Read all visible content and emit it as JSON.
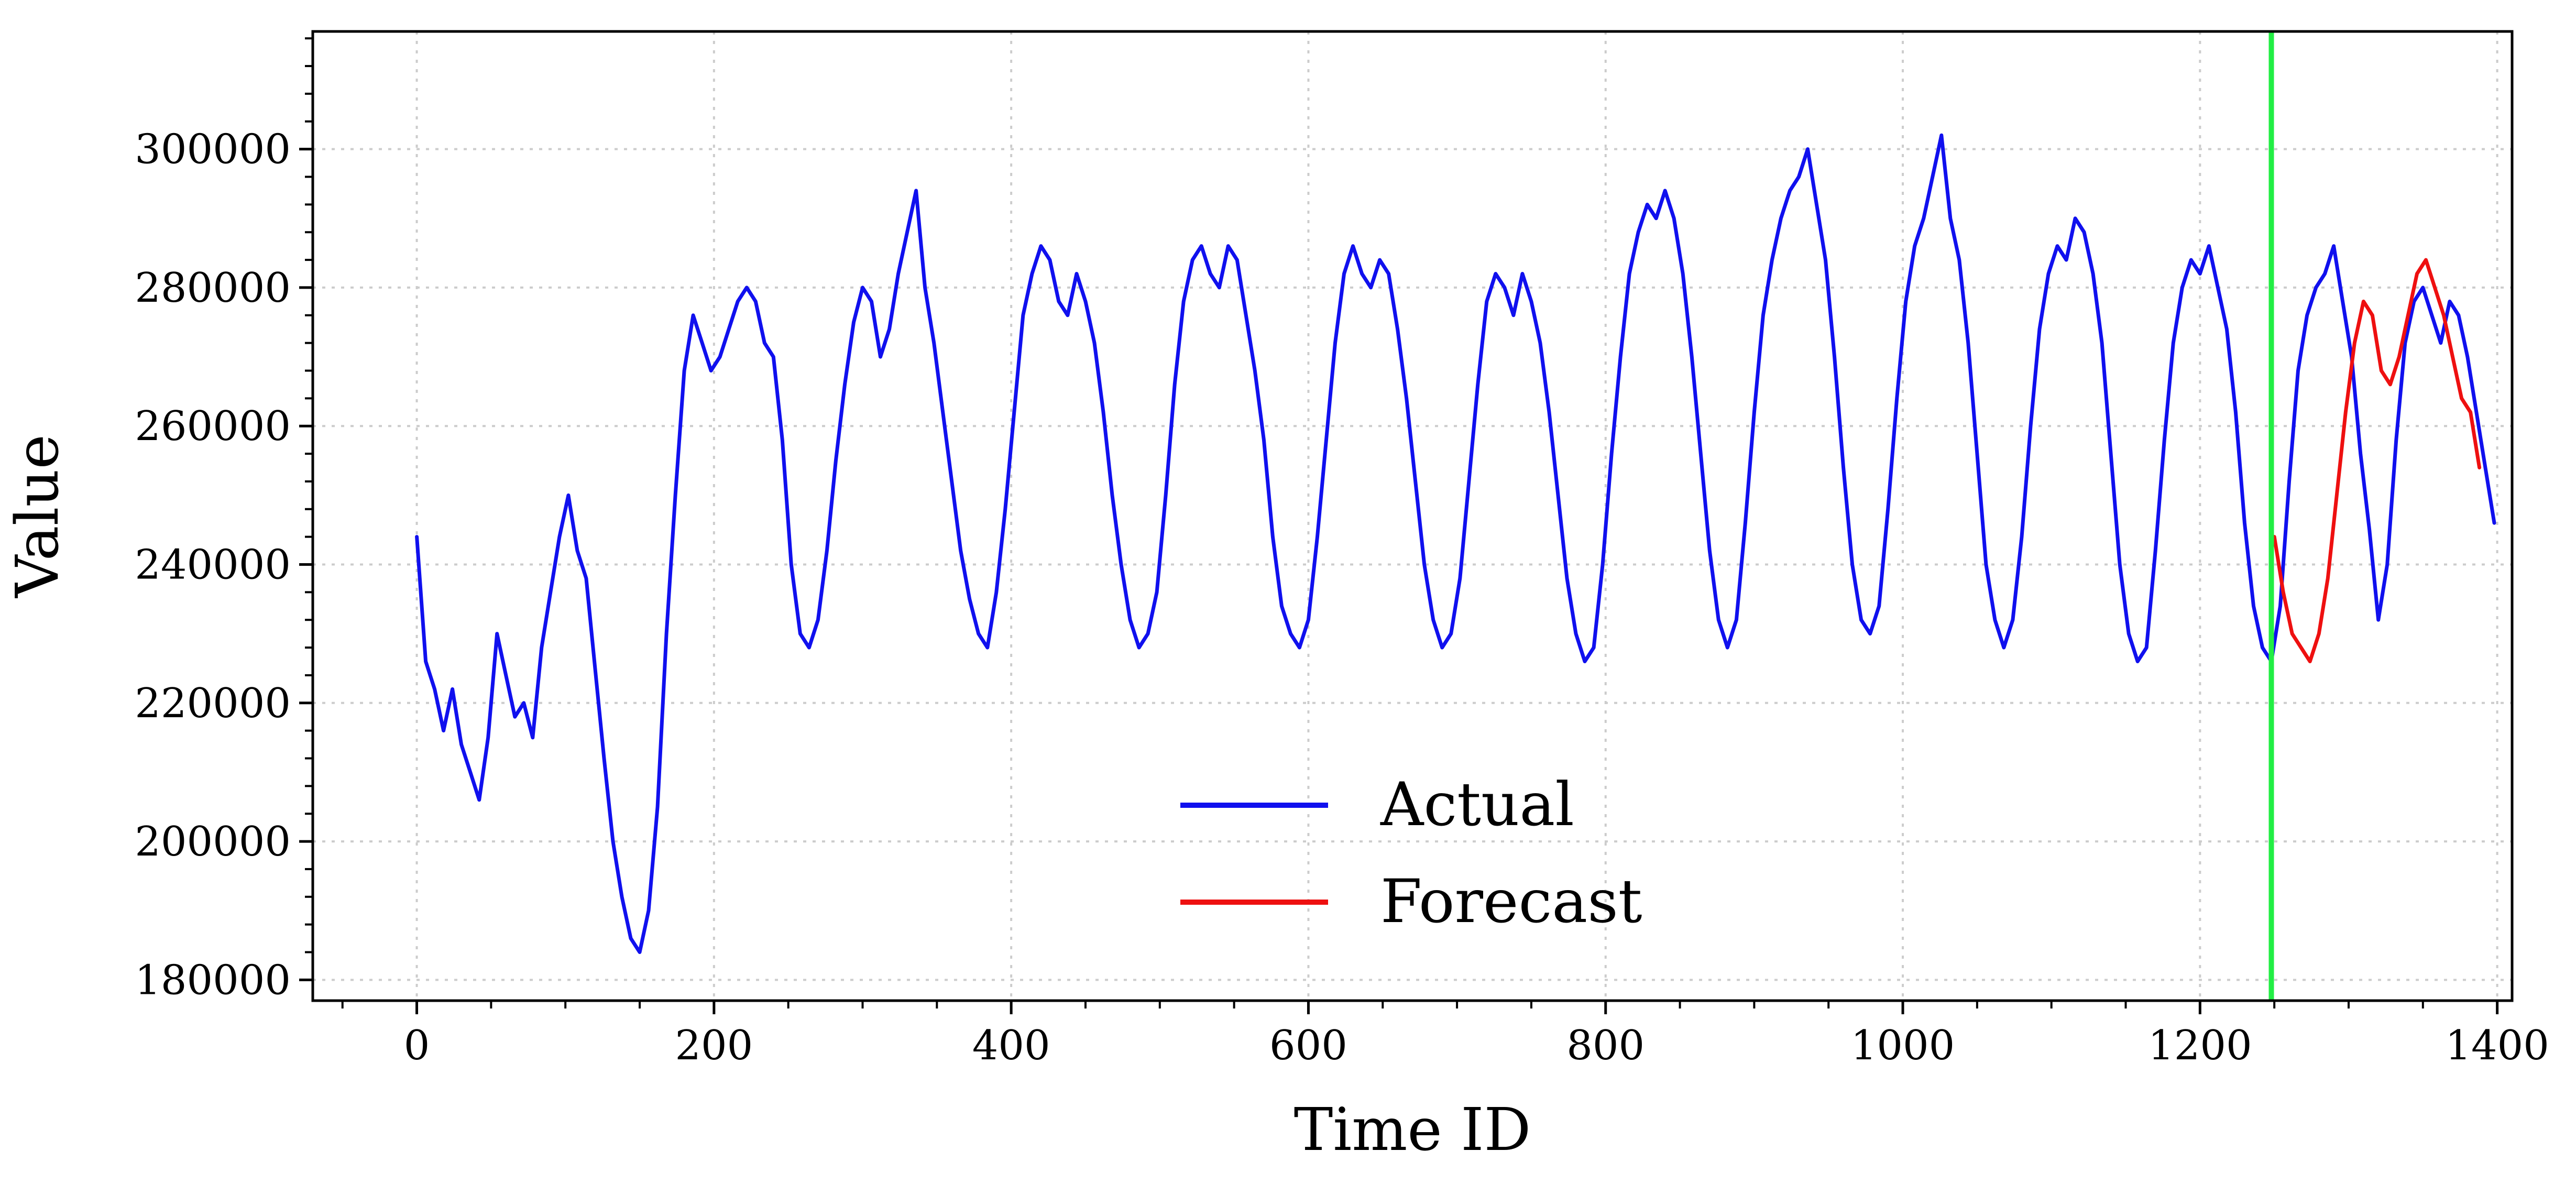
{
  "chart_data": {
    "type": "line",
    "title": "",
    "xlabel": "Time ID",
    "ylabel": "Value",
    "xlim": [
      -70,
      1410
    ],
    "ylim": [
      177000,
      317000
    ],
    "x_ticks": [
      0,
      200,
      400,
      600,
      800,
      1000,
      1200,
      1400
    ],
    "x_tick_labels": [
      "0",
      "200",
      "400",
      "600",
      "800",
      "1000",
      "1200",
      "1400"
    ],
    "y_ticks": [
      180000,
      200000,
      220000,
      240000,
      260000,
      280000,
      300000
    ],
    "y_tick_labels": [
      "180000",
      "200000",
      "220000",
      "240000",
      "260000",
      "280000",
      "300000"
    ],
    "grid": true,
    "legend_position": "lower-center",
    "forecast_start": 1248,
    "divider_color": "#22ee44",
    "series": [
      {
        "name": "Actual",
        "color": "#1010ee",
        "x_start": 0,
        "x_step": 6,
        "values": [
          244000,
          226000,
          222000,
          216000,
          222000,
          214000,
          210000,
          206000,
          215000,
          230000,
          224000,
          218000,
          220000,
          215000,
          228000,
          236000,
          244000,
          250000,
          242000,
          238000,
          225000,
          212000,
          200000,
          192000,
          186000,
          184000,
          190000,
          205000,
          230000,
          250000,
          268000,
          276000,
          272000,
          268000,
          270000,
          274000,
          278000,
          280000,
          278000,
          272000,
          270000,
          258000,
          240000,
          230000,
          228000,
          232000,
          242000,
          255000,
          266000,
          275000,
          280000,
          278000,
          270000,
          274000,
          282000,
          288000,
          294000,
          280000,
          272000,
          262000,
          252000,
          242000,
          235000,
          230000,
          228000,
          236000,
          248000,
          262000,
          276000,
          282000,
          286000,
          284000,
          278000,
          276000,
          282000,
          278000,
          272000,
          262000,
          250000,
          240000,
          232000,
          228000,
          230000,
          236000,
          250000,
          266000,
          278000,
          284000,
          286000,
          282000,
          280000,
          286000,
          284000,
          276000,
          268000,
          258000,
          244000,
          234000,
          230000,
          228000,
          232000,
          244000,
          258000,
          272000,
          282000,
          286000,
          282000,
          280000,
          284000,
          282000,
          274000,
          264000,
          252000,
          240000,
          232000,
          228000,
          230000,
          238000,
          252000,
          266000,
          278000,
          282000,
          280000,
          276000,
          282000,
          278000,
          272000,
          262000,
          250000,
          238000,
          230000,
          226000,
          228000,
          240000,
          256000,
          270000,
          282000,
          288000,
          292000,
          290000,
          294000,
          290000,
          282000,
          270000,
          256000,
          242000,
          232000,
          228000,
          232000,
          246000,
          262000,
          276000,
          284000,
          290000,
          294000,
          296000,
          300000,
          292000,
          284000,
          270000,
          254000,
          240000,
          232000,
          230000,
          234000,
          248000,
          264000,
          278000,
          286000,
          290000,
          296000,
          302000,
          290000,
          284000,
          272000,
          256000,
          240000,
          232000,
          228000,
          232000,
          244000,
          260000,
          274000,
          282000,
          286000,
          284000,
          290000,
          288000,
          282000,
          272000,
          256000,
          240000,
          230000,
          226000,
          228000,
          242000,
          258000,
          272000,
          280000,
          284000,
          282000,
          286000,
          280000,
          274000,
          262000,
          246000,
          234000,
          228000,
          226000,
          234000,
          252000,
          268000,
          276000,
          280000,
          282000,
          286000,
          278000,
          270000,
          256000,
          245000,
          232000,
          240000,
          258000,
          272000,
          278000,
          280000,
          276000,
          272000,
          278000,
          276000,
          270000,
          262000,
          254000,
          246000
        ]
      },
      {
        "name": "Forecast",
        "color": "#ee1010",
        "x_start": 1250,
        "x_step": 6,
        "values": [
          244000,
          236000,
          230000,
          228000,
          226000,
          230000,
          238000,
          250000,
          262000,
          272000,
          278000,
          276000,
          268000,
          266000,
          270000,
          276000,
          282000,
          284000,
          280000,
          276000,
          270000,
          264000,
          262000,
          254000
        ]
      }
    ]
  }
}
